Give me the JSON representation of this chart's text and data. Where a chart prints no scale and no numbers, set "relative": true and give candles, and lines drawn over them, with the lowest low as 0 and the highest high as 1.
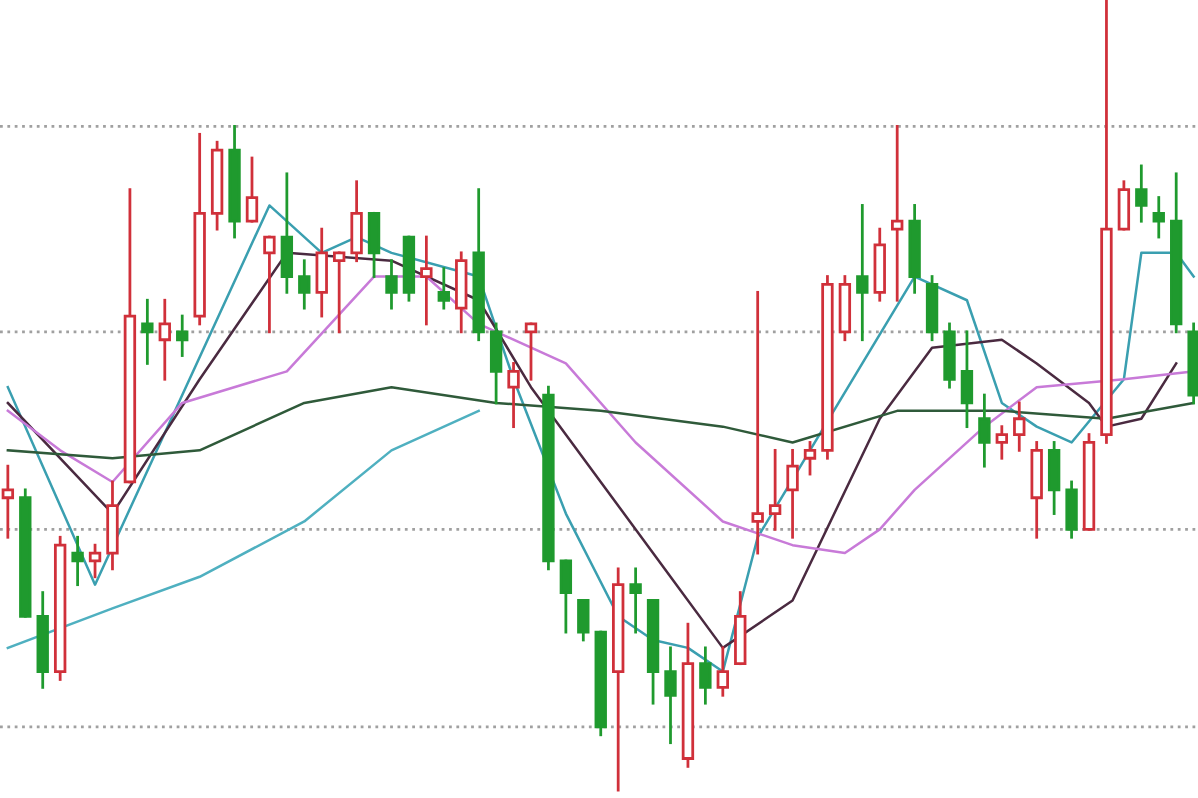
{
  "chart_data": {
    "type": "candlestick",
    "relative": true,
    "categories": [
      null,
      null,
      null,
      null,
      null,
      null,
      null,
      null,
      null,
      null,
      null,
      null,
      null,
      null,
      null,
      null,
      null,
      null,
      null,
      null,
      null,
      null,
      null,
      null,
      null,
      null,
      null,
      null,
      null,
      null,
      null,
      null,
      null,
      null,
      null,
      null,
      null,
      null,
      null,
      null,
      null,
      null,
      null,
      null,
      null,
      null,
      null,
      null,
      null,
      null,
      null,
      null,
      null,
      null,
      null,
      null,
      null,
      null,
      null,
      null,
      null,
      null,
      null,
      null,
      null,
      null,
      null,
      null,
      null
    ],
    "ohlc": [
      [
        0.37,
        0.41,
        0.32,
        0.38
      ],
      [
        0.37,
        0.38,
        0.22,
        0.22
      ],
      [
        0.22,
        0.25,
        0.13,
        0.15
      ],
      [
        0.15,
        0.32,
        0.14,
        0.31
      ],
      [
        0.3,
        0.32,
        0.26,
        0.29
      ],
      [
        0.29,
        0.31,
        0.27,
        0.3
      ],
      [
        0.3,
        0.39,
        0.28,
        0.36
      ],
      [
        0.39,
        0.76,
        0.39,
        0.6
      ],
      [
        0.59,
        0.62,
        0.54,
        0.58
      ],
      [
        0.57,
        0.62,
        0.52,
        0.59
      ],
      [
        0.58,
        0.6,
        0.55,
        0.57
      ],
      [
        0.6,
        0.83,
        0.59,
        0.73
      ],
      [
        0.73,
        0.82,
        0.71,
        0.81
      ],
      [
        0.81,
        0.84,
        0.7,
        0.72
      ],
      [
        0.72,
        0.8,
        0.72,
        0.75
      ],
      [
        0.68,
        0.7,
        0.58,
        0.7
      ],
      [
        0.7,
        0.78,
        0.63,
        0.65
      ],
      [
        0.65,
        0.67,
        0.61,
        0.63
      ],
      [
        0.63,
        0.71,
        0.6,
        0.68
      ],
      [
        0.67,
        0.68,
        0.58,
        0.68
      ],
      [
        0.68,
        0.77,
        0.67,
        0.73
      ],
      [
        0.73,
        0.73,
        0.65,
        0.68
      ],
      [
        0.65,
        0.67,
        0.61,
        0.63
      ],
      [
        0.7,
        0.7,
        0.62,
        0.63
      ],
      [
        0.65,
        0.7,
        0.59,
        0.66
      ],
      [
        0.63,
        0.66,
        0.61,
        0.62
      ],
      [
        0.61,
        0.68,
        0.58,
        0.67
      ],
      [
        0.68,
        0.76,
        0.57,
        0.58
      ],
      [
        0.58,
        0.59,
        0.49,
        0.53
      ],
      [
        0.51,
        0.54,
        0.46,
        0.53
      ],
      [
        0.58,
        0.59,
        0.52,
        0.59
      ],
      [
        0.5,
        0.51,
        0.28,
        0.29
      ],
      [
        0.29,
        0.29,
        0.2,
        0.25
      ],
      [
        0.24,
        0.24,
        0.19,
        0.2
      ],
      [
        0.2,
        0.2,
        0.07,
        0.08
      ],
      [
        0.15,
        0.28,
        0,
        0.26
      ],
      [
        0.26,
        0.28,
        0.2,
        0.25
      ],
      [
        0.24,
        0.24,
        0.11,
        0.15
      ],
      [
        0.15,
        0.18,
        0.06,
        0.12
      ],
      [
        0.04,
        0.21,
        0.03,
        0.16
      ],
      [
        0.16,
        0.18,
        0.11,
        0.13
      ],
      [
        0.13,
        0.18,
        0.12,
        0.15
      ],
      [
        0.16,
        0.25,
        0.16,
        0.22
      ],
      [
        0.34,
        0.63,
        0.3,
        0.35
      ],
      [
        0.35,
        0.43,
        0.33,
        0.36
      ],
      [
        0.38,
        0.43,
        0.32,
        0.41
      ],
      [
        0.42,
        0.44,
        0.4,
        0.43
      ],
      [
        0.43,
        0.65,
        0.42,
        0.64
      ],
      [
        0.58,
        0.65,
        0.57,
        0.64
      ],
      [
        0.65,
        0.74,
        0.57,
        0.63
      ],
      [
        0.63,
        0.71,
        0.62,
        0.69
      ],
      [
        0.71,
        0.84,
        0.62,
        0.72
      ],
      [
        0.72,
        0.74,
        0.63,
        0.65
      ],
      [
        0.64,
        0.65,
        0.57,
        0.58
      ],
      [
        0.58,
        0.59,
        0.51,
        0.52
      ],
      [
        0.53,
        0.58,
        0.46,
        0.49
      ],
      [
        0.47,
        0.5,
        0.41,
        0.44
      ],
      [
        0.44,
        0.46,
        0.42,
        0.45
      ],
      [
        0.45,
        0.49,
        0.43,
        0.47
      ],
      [
        0.37,
        0.44,
        0.32,
        0.43
      ],
      [
        0.43,
        0.44,
        0.35,
        0.38
      ],
      [
        0.38,
        0.39,
        0.32,
        0.33
      ],
      [
        0.33,
        0.45,
        0.33,
        0.44
      ],
      [
        0.45,
        1,
        0.44,
        0.71
      ],
      [
        0.71,
        0.77,
        0.71,
        0.76
      ],
      [
        0.76,
        0.79,
        0.72,
        0.74
      ],
      [
        0.73,
        0.75,
        0.7,
        0.72
      ],
      [
        0.72,
        0.78,
        0.58,
        0.59
      ],
      [
        0.58,
        0.59,
        0.49,
        0.5
      ]
    ],
    "colors": [
      "#d0303a",
      "#1f9a2e",
      "#1f9a2e",
      "#d0303a",
      "#1f9a2e",
      "#d0303a",
      "#d0303a",
      "#d0303a",
      "#1f9a2e",
      "#d0303a",
      "#1f9a2e",
      "#d0303a",
      "#d0303a",
      "#1f9a2e",
      "#d0303a",
      "#d0303a",
      "#1f9a2e",
      "#1f9a2e",
      "#d0303a",
      "#d0303a",
      "#d0303a",
      "#1f9a2e",
      "#1f9a2e",
      "#1f9a2e",
      "#d0303a",
      "#1f9a2e",
      "#d0303a",
      "#1f9a2e",
      "#1f9a2e",
      "#d0303a",
      "#d0303a",
      "#1f9a2e",
      "#1f9a2e",
      "#1f9a2e",
      "#1f9a2e",
      "#d0303a",
      "#1f9a2e",
      "#1f9a2e",
      "#1f9a2e",
      "#d0303a",
      "#1f9a2e",
      "#d0303a",
      "#d0303a",
      "#d0303a",
      "#d0303a",
      "#d0303a",
      "#d0303a",
      "#d0303a",
      "#d0303a",
      "#1f9a2e",
      "#d0303a",
      "#d0303a",
      "#1f9a2e",
      "#1f9a2e",
      "#1f9a2e",
      "#1f9a2e",
      "#1f9a2e",
      "#d0303a",
      "#d0303a",
      "#d0303a",
      "#1f9a2e",
      "#1f9a2e",
      "#d0303a",
      "#d0303a",
      "#d0303a",
      "#1f9a2e",
      "#1f9a2e",
      "#1f9a2e",
      "#1f9a2e"
    ],
    "series": [
      {
        "type": "line",
        "color": "#3a9fb0",
        "values": [
          0.51,
          null,
          null,
          null,
          null,
          0.26,
          null,
          null,
          null,
          null,
          null,
          null,
          null,
          null,
          null,
          0.74,
          null,
          null,
          0.68,
          null,
          0.7,
          null,
          0.68,
          null,
          null,
          null,
          null,
          0.65,
          null,
          0.52,
          null,
          null,
          0.35,
          null,
          null,
          0.22,
          null,
          0.19,
          null,
          0.18,
          null,
          0.15,
          null,
          0.32,
          null,
          null,
          null,
          null,
          null,
          0.54,
          null,
          null,
          0.65,
          null,
          null,
          0.62,
          null,
          0.49,
          null,
          0.46,
          null,
          0.44,
          null,
          null,
          0.52,
          0.68,
          null,
          0.68,
          0.65
        ]
      },
      {
        "type": "line",
        "color": "#4a2a40",
        "values": [
          0.49,
          null,
          null,
          null,
          null,
          null,
          0.35,
          null,
          null,
          null,
          null,
          0.52,
          null,
          null,
          null,
          null,
          0.68,
          null,
          null,
          null,
          null,
          null,
          0.67,
          null,
          null,
          null,
          null,
          0.62,
          null,
          null,
          0.51,
          null,
          null,
          null,
          0.39,
          null,
          null,
          null,
          0.27,
          null,
          null,
          0.18,
          null,
          null,
          null,
          0.24,
          null,
          null,
          null,
          null,
          0.47,
          null,
          null,
          0.56,
          null,
          null,
          null,
          0.57,
          null,
          0.54,
          null,
          null,
          0.49,
          0.46,
          null,
          0.47,
          null,
          0.54,
          null
        ]
      },
      {
        "type": "line",
        "color": "#c87ad8",
        "values": [
          0.48,
          null,
          null,
          0.43,
          null,
          null,
          0.39,
          null,
          null,
          null,
          0.49,
          null,
          null,
          null,
          null,
          null,
          0.53,
          null,
          null,
          null,
          null,
          0.65,
          null,
          null,
          0.65,
          null,
          null,
          0.59,
          null,
          null,
          null,
          null,
          0.54,
          null,
          null,
          null,
          0.44,
          null,
          null,
          null,
          null,
          0.34,
          null,
          null,
          null,
          0.31,
          null,
          null,
          0.3,
          null,
          0.33,
          null,
          0.38,
          null,
          null,
          null,
          0.46,
          null,
          null,
          0.51,
          null,
          null,
          null,
          null,
          0.52,
          null,
          null,
          null,
          0.53
        ]
      },
      {
        "type": "line",
        "color": "#2f5a3a",
        "values": [
          0.43,
          null,
          null,
          null,
          null,
          null,
          0.42,
          null,
          null,
          null,
          null,
          0.43,
          null,
          null,
          null,
          null,
          null,
          0.49,
          null,
          null,
          null,
          null,
          0.51,
          null,
          null,
          null,
          null,
          null,
          0.49,
          null,
          null,
          null,
          null,
          null,
          0.48,
          null,
          null,
          null,
          null,
          null,
          null,
          0.46,
          null,
          null,
          null,
          0.44,
          null,
          null,
          null,
          null,
          null,
          0.48,
          null,
          null,
          null,
          null,
          null,
          0.48,
          null,
          null,
          null,
          null,
          null,
          0.47,
          null,
          null,
          null,
          null,
          0.49
        ]
      },
      {
        "type": "line",
        "color": "#4fb0c0",
        "values": [
          0.18,
          null,
          null,
          null,
          null,
          null,
          0.23,
          null,
          null,
          null,
          null,
          0.27,
          null,
          null,
          null,
          null,
          null,
          0.34,
          null,
          null,
          null,
          null,
          0.43,
          null,
          null,
          null,
          null,
          0.48,
          null,
          null,
          null,
          null,
          null,
          null,
          null,
          null,
          null,
          null,
          null,
          null,
          null,
          null,
          null,
          null,
          null,
          null,
          null,
          null,
          null,
          null,
          null,
          null,
          null,
          null,
          null,
          null,
          null,
          null,
          null,
          null,
          null,
          null,
          null,
          null,
          null,
          null,
          null,
          null,
          null
        ]
      }
    ],
    "ref_lines": [
      {
        "axis": "y",
        "value": 0.84,
        "color": "#a0a0a0",
        "line_style": "dotted"
      },
      {
        "axis": "y",
        "value": 0.58,
        "color": "#a0a0a0",
        "line_style": "dotted"
      },
      {
        "axis": "y",
        "value": 0.33,
        "color": "#a0a0a0",
        "line_style": "dotted"
      },
      {
        "axis": "y",
        "value": 0.08,
        "color": "#a0a0a0",
        "line_style": "dotted"
      }
    ]
  }
}
